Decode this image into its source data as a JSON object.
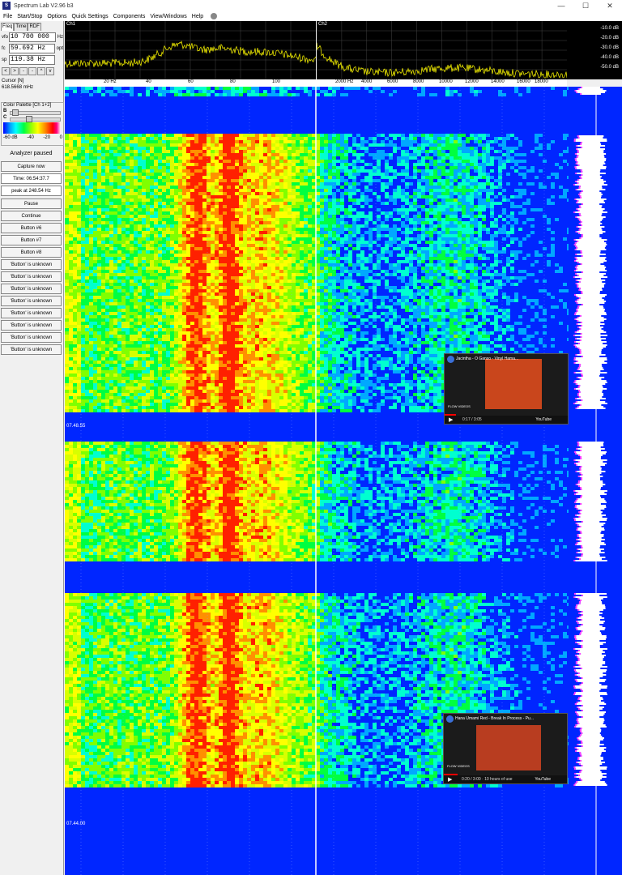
{
  "window": {
    "title": "Spectrum Lab V2.96 b3",
    "icon": "app-icon",
    "minimize": "—",
    "maximize": "☐",
    "close": "✕"
  },
  "menu": [
    "File",
    "Start/Stop",
    "Options",
    "Quick Settings",
    "Components",
    "View/Windows",
    "Help"
  ],
  "tabs": [
    "Freq",
    "Time",
    "RDF"
  ],
  "freq": {
    "vfo_label": "vfo",
    "vfo_value": "10 700 000",
    "vfo_unit": "Hz",
    "fc_label": "fc",
    "fc_value": "59.692 Hz",
    "fc_unit": "opt",
    "sp_label": "sp",
    "sp_value": "119.38 Hz"
  },
  "nav_buttons": [
    "<",
    ">",
    "-",
    "-",
    "^",
    "v"
  ],
  "cursor": {
    "title": "Cursor [N]",
    "value": "618.5668 mHz"
  },
  "palette": {
    "title": "Color Palette [Ch 1+2]",
    "b_label": "B",
    "c_label": "C",
    "b_level": 0.05,
    "c_level": 0.35,
    "ticks": [
      "-60 dB",
      "-40",
      "-20",
      "0"
    ]
  },
  "side_buttons": [
    {
      "label": "Analyzer paused",
      "kind": "status"
    },
    {
      "label": "Capture now",
      "kind": "button"
    },
    {
      "label": "Time:  06:54:37.7",
      "kind": "info"
    },
    {
      "label": "peak at 248.54 Hz",
      "kind": "info"
    },
    {
      "label": "Pause",
      "kind": "button"
    },
    {
      "label": "Continue",
      "kind": "button"
    },
    {
      "label": "Button #6",
      "kind": "button"
    },
    {
      "label": "Button #7",
      "kind": "button"
    },
    {
      "label": "Button #8",
      "kind": "button"
    },
    {
      "label": "'Button' is unknown",
      "kind": "button"
    },
    {
      "label": "'Button' is unknown",
      "kind": "button"
    },
    {
      "label": "'Button' is unknown",
      "kind": "button"
    },
    {
      "label": "'Button' is unknown",
      "kind": "button"
    },
    {
      "label": "'Button' is unknown",
      "kind": "button"
    },
    {
      "label": "'Button' is unknown",
      "kind": "button"
    },
    {
      "label": "'Button' is unknown",
      "kind": "button"
    },
    {
      "label": "'Button' is unknown",
      "kind": "button"
    }
  ],
  "spectrum": {
    "ch1_label": "Ch1",
    "ch2_label": "Ch2",
    "db_labels": [
      "-10.0 dB",
      "-20.0 dB",
      "-30.0 dB",
      "-40.0 dB",
      "-50.0 dB"
    ],
    "ch1_axis": [
      "20 Hz",
      "40",
      "60",
      "80",
      "100"
    ],
    "ch2_axis": [
      "2000 Hz",
      "4000",
      "6000",
      "8000",
      "10000",
      "12000",
      "14000",
      "16000",
      "18000"
    ]
  },
  "waterfall": {
    "time_labels": [
      "07.48.55",
      "07.44.00"
    ]
  },
  "videos": [
    {
      "title": "Jacintha - O Ganso - Vinyl Hama...",
      "time": "0:17 / 3:05",
      "badge": "FLOW VIDEOS",
      "brand": "YouTube",
      "progress": 0.09
    },
    {
      "title": "Hana Umami Red - Break In Process - Pu...",
      "time": "0:20 / 3:00 · 10 hours of use",
      "badge": "FLOW VIDEOS",
      "brand": "YouTube",
      "progress": 0.11
    }
  ],
  "colors": {
    "waterfall_bg": "#0026ff",
    "trace": "#e8e400",
    "marker": "#ffffff"
  }
}
